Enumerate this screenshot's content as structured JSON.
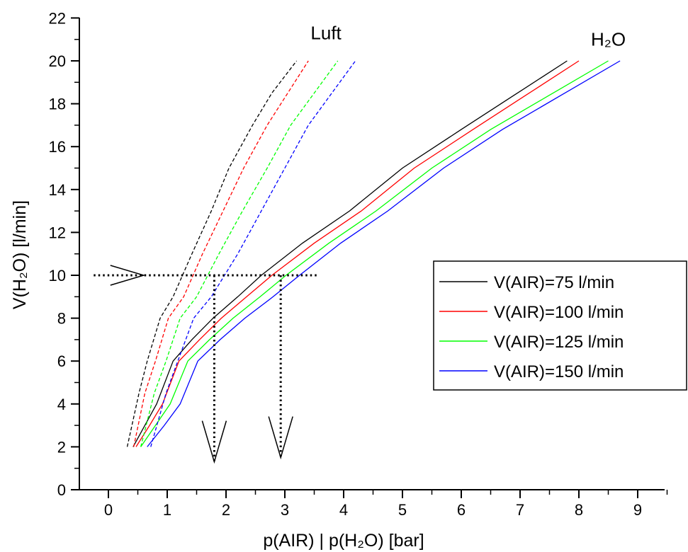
{
  "chart_data": {
    "type": "line",
    "xlabel": "p(AIR) | p(H₂O) [bar]",
    "ylabel": "V(H₂O) [l/min]",
    "xlim": [
      -0.45,
      9.5
    ],
    "ylim": [
      0,
      22
    ],
    "x_ticks": [
      0,
      1,
      2,
      3,
      4,
      5,
      6,
      7,
      8,
      9
    ],
    "y_ticks": [
      0,
      2,
      4,
      6,
      8,
      10,
      12,
      14,
      16,
      18,
      20,
      22
    ],
    "grid": false,
    "legend_position": "right",
    "annotations": [
      {
        "text": "Luft",
        "x": 3.7,
        "y": 21.3
      },
      {
        "text": "H₂O",
        "x": 8.5,
        "y": 21.0
      }
    ],
    "reference_lines": {
      "horizontal": {
        "y": 10,
        "x_from": -0.25,
        "x_to": 3.55
      },
      "vertical": [
        {
          "x": 1.8,
          "y_from": 1.3,
          "y_to": 10
        },
        {
          "x": 2.93,
          "y_from": 1.5,
          "y_to": 10
        }
      ]
    },
    "arrows": [
      {
        "direction": "right",
        "tip_x": 0.6,
        "tip_y": 10
      },
      {
        "direction": "down",
        "tip_x": 1.8,
        "tip_y": 1.3
      },
      {
        "direction": "down",
        "tip_x": 2.93,
        "tip_y": 1.5
      }
    ],
    "series": [
      {
        "name": "V(AIR)=75 l/min",
        "color": "#000000",
        "air": {
          "x": [
            0.32,
            0.52,
            0.66,
            0.88,
            1.1,
            1.42,
            1.75,
            2.05,
            2.45,
            2.78,
            3.2
          ],
          "y": [
            2,
            4.5,
            6,
            8,
            9,
            11,
            13,
            15,
            17,
            18.5,
            20
          ]
        },
        "water": {
          "x": [
            0.42,
            0.62,
            0.82,
            1.1,
            1.42,
            1.78,
            2.2,
            2.6,
            3.3,
            4.1,
            5.0,
            6.0,
            6.9,
            7.8
          ],
          "y": [
            2,
            3,
            4,
            6,
            7,
            8,
            9,
            10,
            11.5,
            13,
            15,
            16.8,
            18.4,
            20
          ]
        }
      },
      {
        "name": "V(AIR)=100 l/min",
        "color": "#ff0000",
        "air": {
          "x": [
            0.43,
            0.62,
            0.8,
            1.02,
            1.28,
            1.6,
            1.95,
            2.3,
            2.7,
            3.05,
            3.4
          ],
          "y": [
            2,
            4.5,
            6,
            8,
            9,
            11,
            13,
            15,
            17,
            18.5,
            20
          ]
        },
        "water": {
          "x": [
            0.47,
            0.7,
            0.92,
            1.2,
            1.55,
            1.92,
            2.35,
            2.78,
            3.5,
            4.3,
            5.2,
            6.2,
            7.1,
            8.0
          ],
          "y": [
            2,
            3,
            4,
            6,
            7,
            8,
            9,
            10,
            11.5,
            13,
            15,
            16.8,
            18.4,
            20
          ]
        }
      },
      {
        "name": "V(AIR)=125 l/min",
        "color": "#00ff00",
        "air": {
          "x": [
            0.55,
            0.78,
            0.98,
            1.22,
            1.5,
            1.88,
            2.28,
            2.7,
            3.1,
            3.5,
            3.9
          ],
          "y": [
            2,
            4.5,
            6,
            8,
            9,
            11,
            13,
            15,
            17,
            18.5,
            20
          ]
        },
        "water": {
          "x": [
            0.55,
            0.8,
            1.05,
            1.35,
            1.72,
            2.12,
            2.58,
            3.02,
            3.75,
            4.55,
            5.5,
            6.5,
            7.5,
            8.5
          ],
          "y": [
            2,
            3,
            4,
            6,
            7,
            8,
            9,
            10,
            11.5,
            13,
            15,
            16.8,
            18.4,
            20
          ]
        }
      },
      {
        "name": "V(AIR)=150 l/min",
        "color": "#0000ff",
        "air": {
          "x": [
            0.72,
            0.98,
            1.18,
            1.45,
            1.75,
            2.2,
            2.6,
            3.0,
            3.4,
            3.8,
            4.2
          ],
          "y": [
            2,
            4.5,
            6,
            8,
            9,
            11,
            13,
            15,
            17,
            18.5,
            20
          ]
        },
        "water": {
          "x": [
            0.66,
            0.95,
            1.22,
            1.52,
            1.9,
            2.32,
            2.8,
            3.25,
            3.95,
            4.75,
            5.7,
            6.7,
            7.7,
            8.7
          ],
          "y": [
            2,
            3,
            4,
            6,
            7,
            8,
            9,
            10,
            11.5,
            13,
            15,
            16.8,
            18.4,
            20
          ]
        }
      }
    ]
  }
}
